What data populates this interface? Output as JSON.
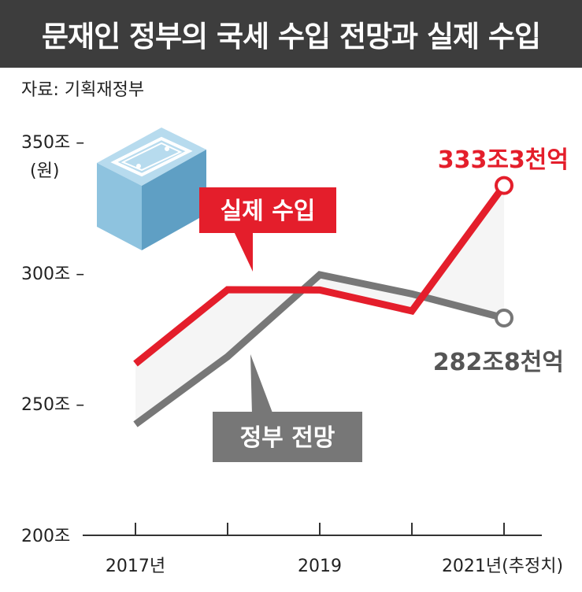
{
  "header": {
    "title": "문재인 정부의 국세 수입 전망과 실제 수입"
  },
  "source": "자료: 기획재정부",
  "colors": {
    "actual": "#e41e2b",
    "expected": "#777777",
    "header_bg": "#3d3d3d"
  },
  "chart_data": {
    "type": "line",
    "title": "문재인 정부의 국세 수입 전망과 실제 수입",
    "unit_label": "(원)",
    "x": [
      "2017",
      "2018",
      "2019",
      "2020",
      "2021"
    ],
    "x_tick_labels": [
      "2017년",
      "",
      "2019",
      "",
      "2021년(추정치)"
    ],
    "y_ticks": [
      200,
      250,
      300,
      350
    ],
    "y_tick_labels": [
      "200조",
      "250조 –",
      "300조 –",
      "350조 –"
    ],
    "ylim": [
      200,
      350
    ],
    "series": [
      {
        "name": "실제 수입",
        "values": [
          265.4,
          293.6,
          293.5,
          285.5,
          333.3
        ]
      },
      {
        "name": "정부 전망",
        "values": [
          242.3,
          268.1,
          299.3,
          292.0,
          282.8
        ]
      }
    ],
    "annotations": {
      "actual_end": "333조3천억",
      "expected_end": "282조8천억"
    },
    "grid": false,
    "legend": "inline labels"
  }
}
